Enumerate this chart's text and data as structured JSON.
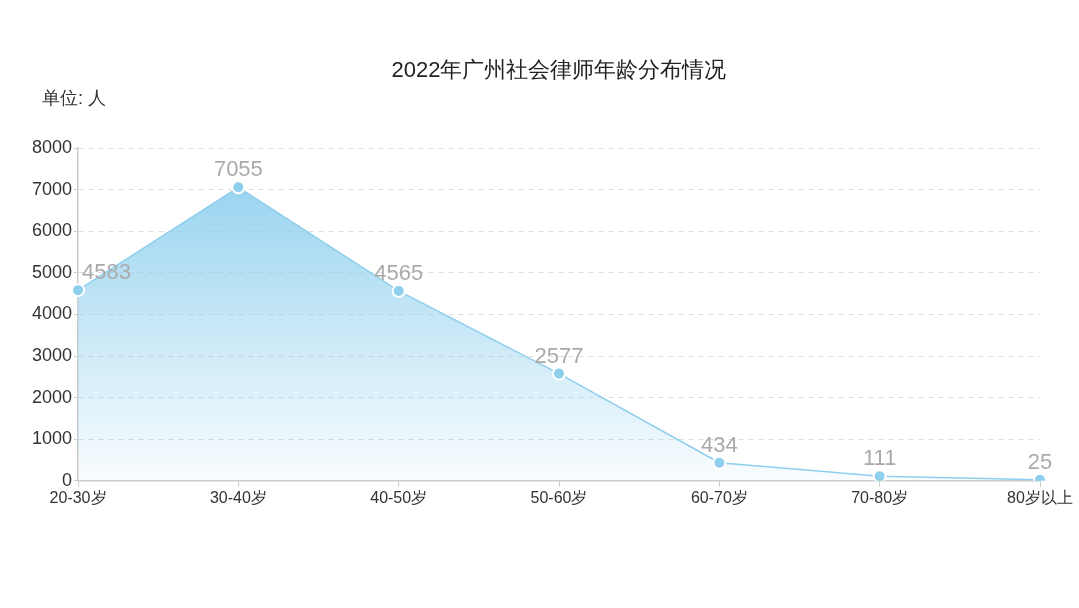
{
  "chart_data": {
    "type": "area",
    "title": "2022年广州社会律师年龄分布情况",
    "ylabel": "单位: 人",
    "categories": [
      "20-30岁",
      "30-40岁",
      "40-50岁",
      "50-60岁",
      "60-70岁",
      "70-80岁",
      "80岁以上"
    ],
    "series": [
      {
        "color": "#8ecfee",
        "values": [
          4583,
          7055,
          4565,
          2577,
          434,
          111,
          25
        ]
      }
    ],
    "ylim": [
      0,
      8000
    ],
    "yticks": [
      0,
      1000,
      2000,
      3000,
      4000,
      5000,
      6000,
      7000,
      8000
    ],
    "grid": "y",
    "marker": "circle",
    "data_labels": true
  }
}
